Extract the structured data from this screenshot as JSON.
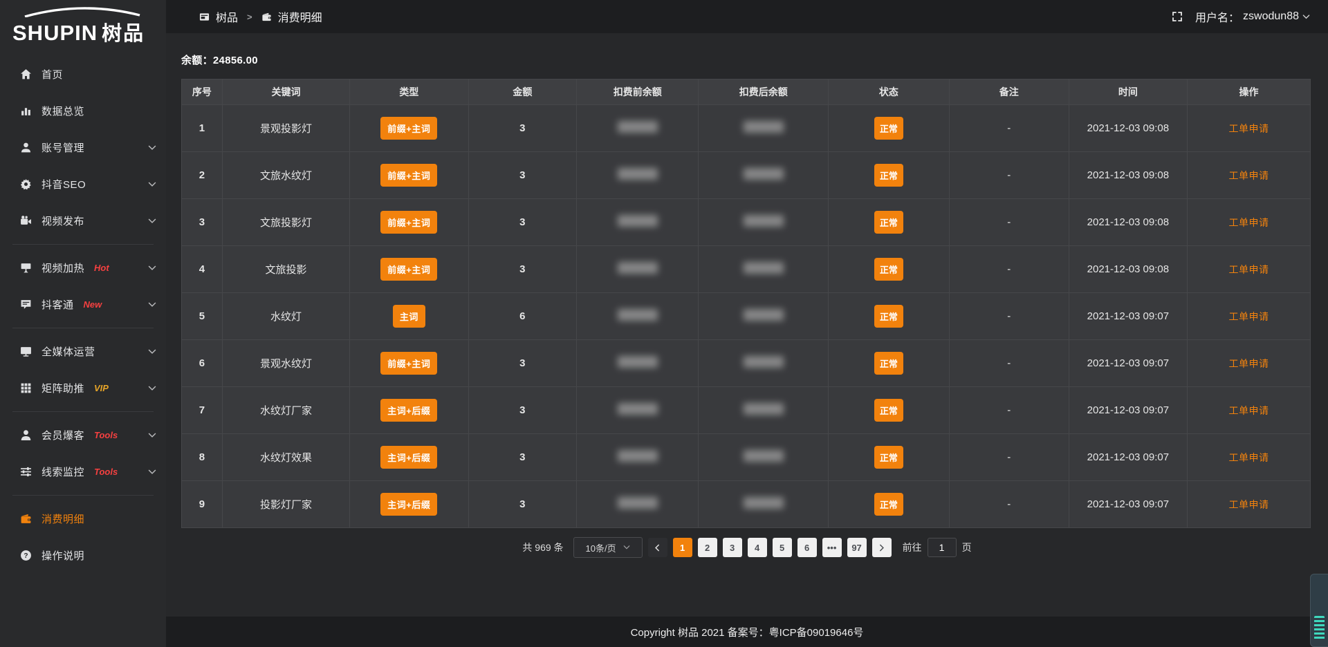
{
  "brand": {
    "logo_en": "SHUPIN",
    "logo_cn": "树品"
  },
  "topbar": {
    "breadcrumb": [
      {
        "label": "树品",
        "icon": "app-window"
      },
      {
        "label": "消费明细",
        "icon": "wallet"
      }
    ],
    "separator": ">",
    "username_label": "用户名：",
    "username": "zswodun88"
  },
  "sidebar": {
    "items": [
      {
        "label": "首页",
        "icon": "home",
        "badge": null,
        "badge_color": null,
        "expandable": false,
        "active": false,
        "divider_after": false
      },
      {
        "label": "数据总览",
        "icon": "bar-chart",
        "badge": null,
        "badge_color": null,
        "expandable": false,
        "active": false,
        "divider_after": false
      },
      {
        "label": "账号管理",
        "icon": "user",
        "badge": null,
        "badge_color": null,
        "expandable": true,
        "active": false,
        "divider_after": false
      },
      {
        "label": "抖音SEO",
        "icon": "gear",
        "badge": null,
        "badge_color": null,
        "expandable": true,
        "active": false,
        "divider_after": false
      },
      {
        "label": "视频发布",
        "icon": "video-camera",
        "badge": null,
        "badge_color": null,
        "expandable": true,
        "active": false,
        "divider_after": true
      },
      {
        "label": "视频加热",
        "icon": "projector-screen",
        "badge": "Hot",
        "badge_color": "red",
        "expandable": true,
        "active": false,
        "divider_after": false
      },
      {
        "label": "抖客通",
        "icon": "chat",
        "badge": "New",
        "badge_color": "red",
        "expandable": true,
        "active": false,
        "divider_after": true
      },
      {
        "label": "全媒体运营",
        "icon": "monitor",
        "badge": null,
        "badge_color": null,
        "expandable": true,
        "active": false,
        "divider_after": false
      },
      {
        "label": "矩阵助推",
        "icon": "grid",
        "badge": "VIP",
        "badge_color": "gold",
        "expandable": true,
        "active": false,
        "divider_after": true
      },
      {
        "label": "会员爆客",
        "icon": "user-solid",
        "badge": "Tools",
        "badge_color": "red",
        "expandable": true,
        "active": false,
        "divider_after": false
      },
      {
        "label": "线索监控",
        "icon": "sliders",
        "badge": "Tools",
        "badge_color": "red",
        "expandable": true,
        "active": false,
        "divider_after": true
      },
      {
        "label": "消费明细",
        "icon": "wallet",
        "badge": null,
        "badge_color": null,
        "expandable": false,
        "active": true,
        "divider_after": false
      },
      {
        "label": "操作说明",
        "icon": "question-circle",
        "badge": null,
        "badge_color": null,
        "expandable": false,
        "active": false,
        "divider_after": false
      }
    ]
  },
  "main": {
    "balance_label": "余额：",
    "balance_value": "24856.00",
    "table": {
      "columns": [
        "序号",
        "关键词",
        "类型",
        "金额",
        "扣费前余额",
        "扣费后余额",
        "状态",
        "备注",
        "时间",
        "操作"
      ],
      "masked_columns": [
        "扣费前余额",
        "扣费后余额"
      ],
      "rows": [
        {
          "index": "1",
          "keyword": "景观投影灯",
          "type": "前缀+主词",
          "amount": "3",
          "status": "正常",
          "note": "-",
          "time": "2021-12-03 09:08",
          "action": "工单申请"
        },
        {
          "index": "2",
          "keyword": "文旅水纹灯",
          "type": "前缀+主词",
          "amount": "3",
          "status": "正常",
          "note": "-",
          "time": "2021-12-03 09:08",
          "action": "工单申请"
        },
        {
          "index": "3",
          "keyword": "文旅投影灯",
          "type": "前缀+主词",
          "amount": "3",
          "status": "正常",
          "note": "-",
          "time": "2021-12-03 09:08",
          "action": "工单申请"
        },
        {
          "index": "4",
          "keyword": "文旅投影",
          "type": "前缀+主词",
          "amount": "3",
          "status": "正常",
          "note": "-",
          "time": "2021-12-03 09:08",
          "action": "工单申请"
        },
        {
          "index": "5",
          "keyword": "水纹灯",
          "type": "主词",
          "amount": "6",
          "status": "正常",
          "note": "-",
          "time": "2021-12-03 09:07",
          "action": "工单申请"
        },
        {
          "index": "6",
          "keyword": "景观水纹灯",
          "type": "前缀+主词",
          "amount": "3",
          "status": "正常",
          "note": "-",
          "time": "2021-12-03 09:07",
          "action": "工单申请"
        },
        {
          "index": "7",
          "keyword": "水纹灯厂家",
          "type": "主词+后缀",
          "amount": "3",
          "status": "正常",
          "note": "-",
          "time": "2021-12-03 09:07",
          "action": "工单申请"
        },
        {
          "index": "8",
          "keyword": "水纹灯效果",
          "type": "主词+后缀",
          "amount": "3",
          "status": "正常",
          "note": "-",
          "time": "2021-12-03 09:07",
          "action": "工单申请"
        },
        {
          "index": "9",
          "keyword": "投影灯厂家",
          "type": "主词+后缀",
          "amount": "3",
          "status": "正常",
          "note": "-",
          "time": "2021-12-03 09:07",
          "action": "工单申请"
        }
      ]
    },
    "pagination": {
      "total": "共 969 条",
      "page_size": "10条/页",
      "pages": [
        "1",
        "2",
        "3",
        "4",
        "5",
        "6",
        "•••",
        "97"
      ],
      "active_page": "1",
      "goto_label": "前往",
      "goto_value": "1",
      "goto_suffix": "页"
    }
  },
  "footer": {
    "copyright": "Copyright 树品 2021 备案号：粤ICP备09019646号"
  },
  "colors": {
    "accent_orange": "#f2820d",
    "badge_red": "#f54040",
    "badge_gold": "#e6a428",
    "topbar_bg": "#1d1e20",
    "sidebar_bg": "#292a2c",
    "content_bg": "#27282a",
    "table_row_bg": "#393a3d",
    "table_header_bg": "#3e3f42",
    "table_border": "#46474a",
    "footer_bg": "#1c1d1f"
  }
}
